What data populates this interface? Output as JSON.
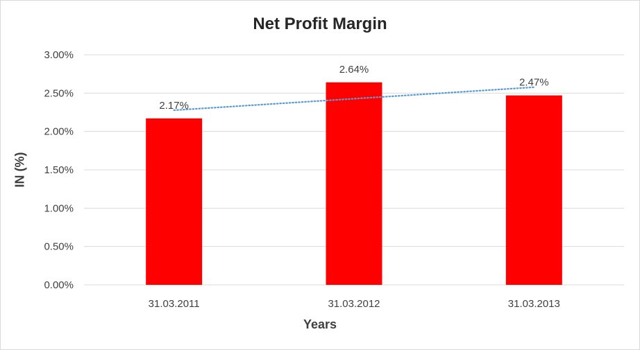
{
  "chart_data": {
    "type": "bar",
    "title": "Net Profit Margin",
    "xlabel": "Years",
    "ylabel": "IN (%)",
    "categories": [
      "31.03.2011",
      "31.03.2012",
      "31.03.2013"
    ],
    "series": [
      {
        "values": [
          2.17,
          2.64,
          2.47
        ],
        "data_labels": [
          "2.17%",
          "2.64%",
          "2.47%"
        ],
        "color": "#ff0000"
      }
    ],
    "trendline": {
      "type": "linear",
      "style": "dotted",
      "color": "#5b9bd5"
    },
    "ylim": [
      0,
      3
    ],
    "yticks": [
      0,
      0.5,
      1,
      1.5,
      2,
      2.5,
      3
    ],
    "ytick_labels": [
      "0.00%",
      "0.50%",
      "1.00%",
      "1.50%",
      "2.00%",
      "2.50%",
      "3.00%"
    ],
    "grid": true,
    "legend": "none"
  }
}
